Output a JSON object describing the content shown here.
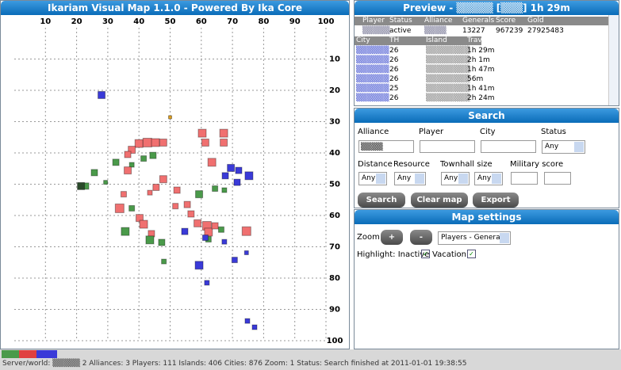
{
  "map": {
    "title": "Ikariam Visual Map 1.1.0 - Powered By Ika Core",
    "xlim": [
      0,
      100
    ],
    "ylim": [
      0,
      100
    ],
    "xticks": [
      10,
      20,
      30,
      40,
      50,
      60,
      70,
      80,
      90,
      100
    ],
    "yticks": [
      10,
      20,
      30,
      40,
      50,
      60,
      70,
      80,
      90,
      100
    ],
    "grid": true,
    "points": [
      {
        "x": 28,
        "y": 21.5,
        "size": 9,
        "color": "#3a3ad8"
      },
      {
        "x": 50,
        "y": 28.6,
        "size": 4,
        "color": "#e0a020"
      },
      {
        "x": 40,
        "y": 37,
        "size": 10,
        "color": "#f07070"
      },
      {
        "x": 42.7,
        "y": 36.7,
        "size": 11,
        "color": "#f07070"
      },
      {
        "x": 45.3,
        "y": 36.7,
        "size": 10,
        "color": "#f07070"
      },
      {
        "x": 47.8,
        "y": 36.7,
        "size": 9,
        "color": "#f07070"
      },
      {
        "x": 37.7,
        "y": 39,
        "size": 9,
        "color": "#f07070"
      },
      {
        "x": 36.4,
        "y": 40.5,
        "size": 8,
        "color": "#f07070"
      },
      {
        "x": 60.3,
        "y": 33.7,
        "size": 10,
        "color": "#f07070"
      },
      {
        "x": 67.2,
        "y": 33.7,
        "size": 10,
        "color": "#f07070"
      },
      {
        "x": 61.3,
        "y": 36.7,
        "size": 9,
        "color": "#f07070"
      },
      {
        "x": 67.2,
        "y": 36.7,
        "size": 9,
        "color": "#f07070"
      },
      {
        "x": 63.4,
        "y": 43,
        "size": 10,
        "color": "#f07070"
      },
      {
        "x": 32.6,
        "y": 43,
        "size": 8,
        "color": "#4a9a4a"
      },
      {
        "x": 41.5,
        "y": 41.8,
        "size": 7,
        "color": "#4a9a4a"
      },
      {
        "x": 44.5,
        "y": 40.8,
        "size": 8,
        "color": "#4a9a4a"
      },
      {
        "x": 37.7,
        "y": 43.8,
        "size": 6,
        "color": "#4a9a4a"
      },
      {
        "x": 25.7,
        "y": 46.3,
        "size": 8,
        "color": "#4a9a4a"
      },
      {
        "x": 22.9,
        "y": 50.6,
        "size": 8,
        "color": "#4a9a4a"
      },
      {
        "x": 29.3,
        "y": 49.4,
        "size": 5,
        "color": "#4a9a4a"
      },
      {
        "x": 21.4,
        "y": 50.6,
        "size": 9,
        "color": "#2a4a2a"
      },
      {
        "x": 69.5,
        "y": 44.8,
        "size": 9,
        "color": "#3a3ad8"
      },
      {
        "x": 72,
        "y": 45.6,
        "size": 8,
        "color": "#3a3ad8"
      },
      {
        "x": 75.3,
        "y": 47.3,
        "size": 10,
        "color": "#3a3ad8"
      },
      {
        "x": 71.5,
        "y": 49.4,
        "size": 8,
        "color": "#3a3ad8"
      },
      {
        "x": 67.7,
        "y": 47.3,
        "size": 8,
        "color": "#3a3ad8"
      },
      {
        "x": 36.4,
        "y": 45.6,
        "size": 9,
        "color": "#f07070"
      },
      {
        "x": 47.8,
        "y": 48.4,
        "size": 9,
        "color": "#f07070"
      },
      {
        "x": 45.5,
        "y": 51,
        "size": 8,
        "color": "#f07070"
      },
      {
        "x": 52.2,
        "y": 51.9,
        "size": 8,
        "color": "#f07070"
      },
      {
        "x": 43.5,
        "y": 52.7,
        "size": 6,
        "color": "#f07070"
      },
      {
        "x": 35.1,
        "y": 53.2,
        "size": 7,
        "color": "#f07070"
      },
      {
        "x": 59.3,
        "y": 53.2,
        "size": 9,
        "color": "#4a9a4a"
      },
      {
        "x": 64.4,
        "y": 51.4,
        "size": 7,
        "color": "#4a9a4a"
      },
      {
        "x": 67.4,
        "y": 51.9,
        "size": 6,
        "color": "#4a9a4a"
      },
      {
        "x": 33.8,
        "y": 57.7,
        "size": 11,
        "color": "#f07070"
      },
      {
        "x": 40.2,
        "y": 60.8,
        "size": 9,
        "color": "#f07070"
      },
      {
        "x": 41.5,
        "y": 62.8,
        "size": 10,
        "color": "#f07070"
      },
      {
        "x": 51.7,
        "y": 57,
        "size": 7,
        "color": "#f07070"
      },
      {
        "x": 55.5,
        "y": 56.5,
        "size": 8,
        "color": "#f07070"
      },
      {
        "x": 56.7,
        "y": 59.5,
        "size": 8,
        "color": "#f07070"
      },
      {
        "x": 58.8,
        "y": 62.5,
        "size": 9,
        "color": "#f07070"
      },
      {
        "x": 61.8,
        "y": 63.3,
        "size": 11,
        "color": "#f07070"
      },
      {
        "x": 62.3,
        "y": 65.3,
        "size": 10,
        "color": "#f07070"
      },
      {
        "x": 64.4,
        "y": 63.3,
        "size": 8,
        "color": "#f07070"
      },
      {
        "x": 74.5,
        "y": 65,
        "size": 11,
        "color": "#f07070"
      },
      {
        "x": 44,
        "y": 65.8,
        "size": 8,
        "color": "#f07070"
      },
      {
        "x": 35.6,
        "y": 65.1,
        "size": 10,
        "color": "#4a9a4a"
      },
      {
        "x": 43.5,
        "y": 67.8,
        "size": 10,
        "color": "#4a9a4a"
      },
      {
        "x": 47.3,
        "y": 68.6,
        "size": 8,
        "color": "#4a9a4a"
      },
      {
        "x": 37.7,
        "y": 57.7,
        "size": 7,
        "color": "#4a9a4a"
      },
      {
        "x": 62.3,
        "y": 67.6,
        "size": 7,
        "color": "#4a9a4a"
      },
      {
        "x": 66.4,
        "y": 64.5,
        "size": 7,
        "color": "#4a9a4a"
      },
      {
        "x": 48,
        "y": 74.7,
        "size": 6,
        "color": "#4a9a4a"
      },
      {
        "x": 54.7,
        "y": 65.1,
        "size": 8,
        "color": "#3a3ad8"
      },
      {
        "x": 61.3,
        "y": 67.1,
        "size": 7,
        "color": "#3a3ad8"
      },
      {
        "x": 59.3,
        "y": 75.9,
        "size": 10,
        "color": "#3a3ad8"
      },
      {
        "x": 61.8,
        "y": 81.5,
        "size": 6,
        "color": "#3a3ad8"
      },
      {
        "x": 70.7,
        "y": 74.2,
        "size": 7,
        "color": "#3a3ad8"
      },
      {
        "x": 67.4,
        "y": 68.4,
        "size": 6,
        "color": "#3a3ad8"
      },
      {
        "x": 74.5,
        "y": 71.9,
        "size": 5,
        "color": "#3a3ad8"
      },
      {
        "x": 74.8,
        "y": 93.7,
        "size": 6,
        "color": "#3a3ad8"
      },
      {
        "x": 77.1,
        "y": 95.7,
        "size": 6,
        "color": "#3a3ad8"
      }
    ]
  },
  "preview": {
    "title": "Preview - ▒▒▒▒▒ [▒▒▒] 1h 29m",
    "player_headers": [
      "Player",
      "Status",
      "Alliance",
      "Generals",
      "Score",
      "Gold"
    ],
    "player_row": [
      "▒▒▒▒▒",
      "active",
      "▒▒▒▒",
      "13227",
      "967239",
      "27925483"
    ],
    "city_headers": [
      "City",
      "TH",
      "Island",
      "Travel"
    ],
    "city_rows": [
      [
        "▒▒▒▒▒▒",
        "26",
        "▒▒▒▒▒▒▒▒",
        "1h 29m"
      ],
      [
        "▒▒▒▒▒▒",
        "26",
        "▒▒▒▒▒▒▒▒",
        "2h 1m"
      ],
      [
        "▒▒▒▒▒▒",
        "26",
        "▒▒▒▒▒▒▒▒",
        "1h 47m"
      ],
      [
        "▒▒▒▒▒▒",
        "26",
        "▒▒▒▒▒▒▒▒",
        "56m"
      ],
      [
        "▒▒▒▒▒▒",
        "25",
        "▒▒▒▒▒▒▒▒",
        "1h 41m"
      ],
      [
        "▒▒▒▒▒▒",
        "26",
        "▒▒▒▒▒▒▒▒",
        "2h 24m"
      ]
    ]
  },
  "search": {
    "title": "Search",
    "alliance": "Alliance",
    "alliance_value": "▒▒▒▒",
    "player": "Player",
    "city": "City",
    "status": "Status",
    "any": "Any",
    "distance": "Distance",
    "resource": "Resource",
    "townhall": "Townhall size",
    "military": "Military score",
    "buttons": [
      "Search",
      "Clear map",
      "Export"
    ]
  },
  "settings": {
    "title": "Map settings",
    "zoom": "Zoom",
    "plus": "+",
    "minus": "-",
    "view": "Players - Generals",
    "highlight": "Highlight: Inactive",
    "vacation": "Vacation"
  },
  "status": "Server/world: ▒▒▒▒▒ 2 Alliances: 3 Players: 111 Islands: 406 Cities: 876 Zoom: 1 Status: Search finished at 2011-01-01 19:38:55"
}
